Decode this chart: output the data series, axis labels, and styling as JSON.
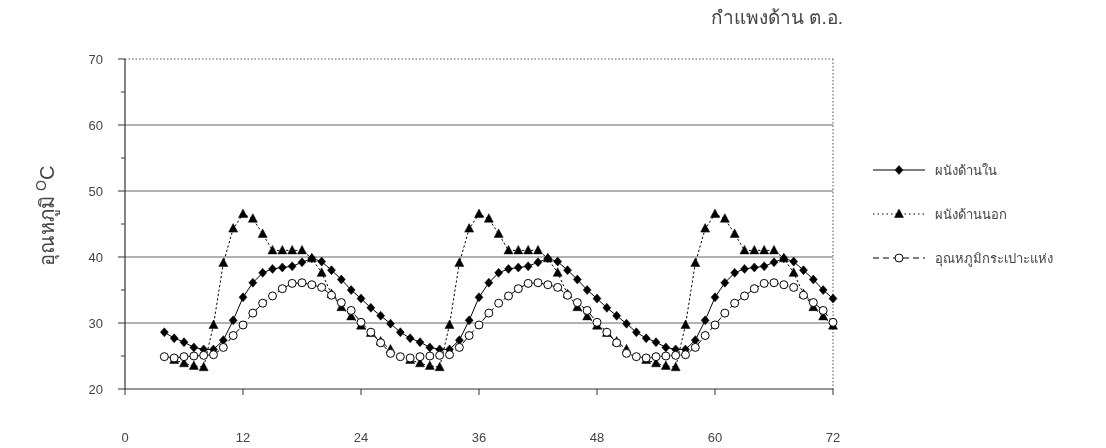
{
  "chart_data": {
    "type": "line",
    "title": "กำแพงด้าน ต.อ.",
    "ylabel": "อุณหภูมิ $^{O}$C",
    "x": [
      4,
      5,
      6,
      7,
      8,
      9,
      10,
      11,
      12,
      13,
      14,
      15,
      16,
      17,
      18,
      19,
      20,
      21,
      22,
      23,
      24,
      25,
      26,
      27,
      28,
      29,
      30,
      31,
      32,
      33,
      34,
      35,
      36,
      37,
      38,
      39,
      40,
      41,
      42,
      43,
      44,
      45,
      46,
      47,
      48,
      49,
      50,
      51,
      52,
      53,
      54,
      55,
      56,
      57,
      58,
      59,
      60,
      61,
      62,
      63,
      64,
      65,
      66,
      67,
      68,
      69,
      70,
      71,
      72
    ],
    "xlim": [
      0,
      72
    ],
    "xticks": [
      0,
      12,
      24,
      36,
      48,
      60,
      72
    ],
    "ylim": [
      20,
      70
    ],
    "yticks": [
      20,
      30,
      40,
      50,
      60,
      70
    ],
    "grid": "y",
    "legend": "right",
    "series": [
      {
        "name": "ผนังด้านใน",
        "color": "#000000",
        "marker": "diamond",
        "line_style": "solid",
        "values": [
          28.6,
          27.7,
          27.1,
          26.3,
          26,
          26,
          27.4,
          30.4,
          33.9,
          36.1,
          37.6,
          38.2,
          38.4,
          38.6,
          39.2,
          39.8,
          39.3,
          38,
          36.6,
          35,
          33.7,
          32.3,
          31.1,
          29.9,
          28.6,
          27.7,
          27.1,
          26.3,
          26,
          26,
          27.4,
          30.4,
          33.9,
          36.1,
          37.6,
          38.2,
          38.4,
          38.6,
          39.2,
          39.8,
          39.3,
          38,
          36.6,
          35,
          33.7,
          32.3,
          31.1,
          29.9,
          28.6,
          27.7,
          27.1,
          26.3,
          26,
          26,
          27.4,
          30.4,
          33.9,
          36.1,
          37.6,
          38.2,
          38.4,
          38.6,
          39.2,
          39.8,
          39.3,
          38,
          36.6,
          35,
          33.7
        ]
      },
      {
        "name": "ผนังด้านนอก",
        "color": "#000000",
        "marker": "triangle",
        "line_style": "dotted",
        "values": [
          null,
          24.4,
          23.9,
          23.5,
          23.3,
          29.7,
          39.1,
          44.3,
          46.5,
          45.8,
          43.5,
          41,
          41,
          41,
          41,
          39.8,
          37.6,
          34.4,
          32.4,
          31,
          29.6,
          28.5,
          27.2,
          26,
          null,
          24.4,
          23.9,
          23.5,
          23.3,
          29.7,
          39.1,
          44.3,
          46.5,
          45.8,
          43.5,
          41,
          41,
          41,
          41,
          39.8,
          37.6,
          34.4,
          32.4,
          31,
          29.6,
          28.5,
          27.2,
          26,
          null,
          24.4,
          23.9,
          23.5,
          23.3,
          29.7,
          39.1,
          44.3,
          46.5,
          45.8,
          43.5,
          41,
          41,
          41,
          41,
          39.8,
          37.6,
          34.4,
          32.4,
          31,
          29.6
        ]
      },
      {
        "name": "อุณหภูมิกระเปาะแห่ง",
        "color": "#000000",
        "marker": "circle",
        "line_style": "dashed",
        "values": [
          24.9,
          24.7,
          24.9,
          25,
          25.1,
          25.2,
          26.3,
          28.1,
          29.7,
          31.5,
          33,
          34.1,
          35.2,
          36,
          36.1,
          35.8,
          35.4,
          34.2,
          33.1,
          31.9,
          30.1,
          28.6,
          27,
          25.4,
          24.9,
          24.7,
          24.9,
          25,
          25.1,
          25.2,
          26.3,
          28.1,
          29.7,
          31.5,
          33,
          34.1,
          35.2,
          36,
          36.1,
          35.8,
          35.4,
          34.2,
          33.1,
          31.9,
          30.1,
          28.6,
          27,
          25.4,
          24.9,
          24.7,
          24.9,
          25,
          25.1,
          25.2,
          26.3,
          28.1,
          29.7,
          31.5,
          33,
          34.1,
          35.2,
          36,
          36.1,
          35.8,
          35.4,
          34.2,
          33.1,
          31.9,
          30.1
        ]
      }
    ]
  }
}
